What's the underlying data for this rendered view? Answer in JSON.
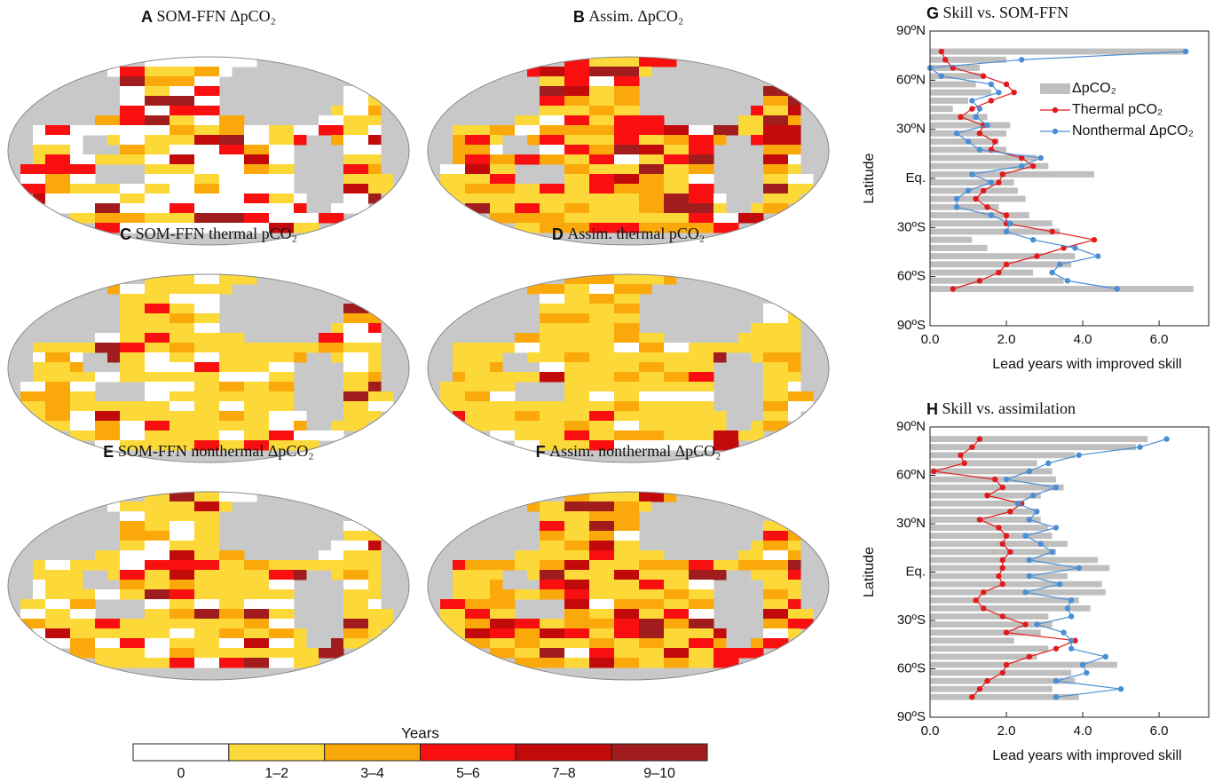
{
  "chart_data": [
    {
      "type": "map",
      "panel": "A",
      "title": "SOM-FFN ΔpCO₂"
    },
    {
      "type": "map",
      "panel": "B",
      "title": "Assim. ΔpCO₂"
    },
    {
      "type": "map",
      "panel": "C",
      "title": "SOM-FFN thermal pCO₂"
    },
    {
      "type": "map",
      "panel": "D",
      "title": "Assim. thermal pCO₂"
    },
    {
      "type": "map",
      "panel": "E",
      "title": "SOM-FFN nonthermal ΔpCO₂"
    },
    {
      "type": "map",
      "panel": "F",
      "title": "Assim. nonthermal ΔpCO₂"
    },
    {
      "type": "colorbar",
      "title": "Years",
      "categories": [
        "0",
        "1–2",
        "3–4",
        "5–6",
        "7–8",
        "9–10"
      ],
      "colors": [
        "#ffffff",
        "#fcd839",
        "#fba90a",
        "#f90f0f",
        "#c30a0a",
        "#a11d1d"
      ]
    },
    {
      "type": "hbar-line",
      "panel": "G",
      "title": "Skill vs. SOM-FFN",
      "xlabel": "Lead years with improved skill",
      "ylabel": "Latitude",
      "xlim": [
        0,
        7.3
      ],
      "xticks": [
        {
          "value": 0,
          "label": "0.0"
        },
        {
          "value": 2,
          "label": "2.0"
        },
        {
          "value": 4,
          "label": "4.0"
        },
        {
          "value": 6,
          "label": "6.0"
        }
      ],
      "ylim": [
        -90,
        90
      ],
      "yticks": [
        {
          "value": 90,
          "label": "90ºN"
        },
        {
          "value": 60,
          "label": "60ºN"
        },
        {
          "value": 30,
          "label": "30ºN"
        },
        {
          "value": 0,
          "label": "Eq."
        },
        {
          "value": -30,
          "label": "30ºS"
        },
        {
          "value": -60,
          "label": "60ºS"
        },
        {
          "value": -90,
          "label": "90ºS"
        }
      ],
      "y": [
        77.5,
        72.5,
        67.5,
        62.5,
        57.5,
        52.5,
        47.5,
        42.5,
        37.5,
        32.5,
        27.5,
        22.5,
        17.5,
        12.5,
        7.5,
        2.5,
        -2.5,
        -7.5,
        -12.5,
        -17.5,
        -22.5,
        -27.5,
        -32.5,
        -37.5,
        -42.5,
        -47.5,
        -52.5,
        -57.5,
        -62.5,
        -67.5
      ],
      "series": [
        {
          "name": "ΔpCO₂",
          "kind": "bar",
          "color": "#bfbfbf",
          "values": [
            6.7,
            2.0,
            1.3,
            1.4,
            1.2,
            1.6,
            1.0,
            0.6,
            1.5,
            2.1,
            2.0,
            1.8,
            2.0,
            2.8,
            3.1,
            4.3,
            2.2,
            2.3,
            2.5,
            1.8,
            2.6,
            3.2,
            3.4,
            1.1,
            1.5,
            3.8,
            3.7,
            2.7,
            3.5,
            6.9
          ]
        },
        {
          "name": "Thermal pCO₂",
          "kind": "line",
          "color": "#e3191c",
          "values": [
            0.3,
            0.4,
            0.6,
            1.4,
            2.0,
            2.2,
            1.6,
            1.1,
            0.8,
            1.4,
            1.3,
            1.7,
            1.6,
            2.4,
            2.7,
            1.9,
            1.8,
            1.4,
            1.2,
            1.5,
            2.0,
            2.0,
            3.2,
            4.3,
            3.5,
            2.8,
            2.0,
            1.8,
            1.3,
            0.6
          ]
        },
        {
          "name": "Nonthermal ΔpCO₂",
          "kind": "line",
          "color": "#4a8fd4",
          "values": [
            6.7,
            2.4,
            0.0,
            0.3,
            1.6,
            1.8,
            1.1,
            1.3,
            1.2,
            1.5,
            0.7,
            1.0,
            1.3,
            2.9,
            2.4,
            1.1,
            1.6,
            1.0,
            0.7,
            0.7,
            1.6,
            2.1,
            2.0,
            2.7,
            3.8,
            4.4,
            3.4,
            3.2,
            3.6,
            4.9
          ]
        }
      ]
    },
    {
      "type": "hbar-line",
      "panel": "H",
      "title": "Skill vs. assimilation",
      "xlabel": "Lead years with improved skill",
      "ylabel": "Latitude",
      "xlim": [
        0,
        7.3
      ],
      "xticks": [
        {
          "value": 0,
          "label": "0.0"
        },
        {
          "value": 2,
          "label": "2.0"
        },
        {
          "value": 4,
          "label": "4.0"
        },
        {
          "value": 6,
          "label": "6.0"
        }
      ],
      "ylim": [
        -90,
        90
      ],
      "yticks": [
        {
          "value": 90,
          "label": "90ºN"
        },
        {
          "value": 60,
          "label": "60ºN"
        },
        {
          "value": 30,
          "label": "30ºN"
        },
        {
          "value": 0,
          "label": "Eq."
        },
        {
          "value": -30,
          "label": "30ºS"
        },
        {
          "value": -60,
          "label": "60ºS"
        },
        {
          "value": -90,
          "label": "90ºS"
        }
      ],
      "y": [
        82.5,
        77.5,
        72.5,
        67.5,
        62.5,
        57.5,
        52.5,
        47.5,
        42.5,
        37.5,
        32.5,
        27.5,
        22.5,
        17.5,
        12.5,
        7.5,
        2.5,
        -2.5,
        -7.5,
        -12.5,
        -17.5,
        -22.5,
        -27.5,
        -32.5,
        -37.5,
        -42.5,
        -47.5,
        -52.5,
        -57.5,
        -62.5,
        -67.5,
        -72.5,
        -77.5
      ],
      "series": [
        {
          "name": "ΔpCO₂",
          "kind": "bar",
          "color": "#bfbfbf",
          "values": [
            5.7,
            5.4,
            3.8,
            2.8,
            3.2,
            3.3,
            3.5,
            2.9,
            2.4,
            2.8,
            2.9,
            3.1,
            3.2,
            3.6,
            3.3,
            4.4,
            4.7,
            3.6,
            4.5,
            4.6,
            3.9,
            4.2,
            3.1,
            3.2,
            2.9,
            2.2,
            3.1,
            2.8,
            4.9,
            3.7,
            3.8,
            3.2,
            3.9
          ]
        },
        {
          "name": "Thermal pCO₂",
          "kind": "line",
          "color": "#e3191c",
          "values": [
            1.3,
            1.1,
            0.8,
            0.9,
            0.1,
            1.7,
            1.9,
            1.5,
            2.4,
            2.1,
            1.3,
            1.8,
            2.0,
            1.9,
            2.1,
            1.9,
            1.9,
            1.8,
            1.9,
            1.4,
            1.2,
            1.4,
            1.9,
            2.5,
            2.0,
            3.8,
            3.3,
            2.6,
            2.0,
            1.9,
            1.5,
            1.3,
            1.1
          ]
        },
        {
          "name": "Nonthermal ΔpCO₂",
          "kind": "line",
          "color": "#4a8fd4",
          "values": [
            6.2,
            5.5,
            3.9,
            3.1,
            2.6,
            2.0,
            3.3,
            2.7,
            2.3,
            2.8,
            2.6,
            3.3,
            2.5,
            2.9,
            3.2,
            2.6,
            3.9,
            2.6,
            3.4,
            2.5,
            3.7,
            3.6,
            3.7,
            2.8,
            3.5,
            3.7,
            3.7,
            4.6,
            4.0,
            4.1,
            3.3,
            5.0,
            3.3
          ]
        }
      ]
    }
  ]
}
